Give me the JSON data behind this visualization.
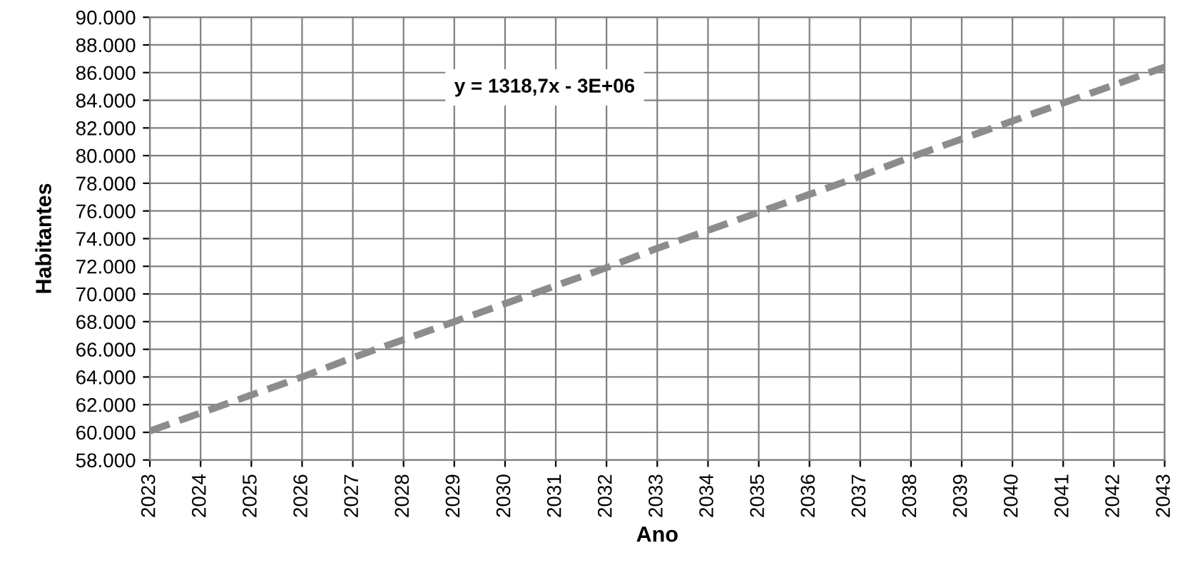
{
  "chart_data": {
    "type": "line",
    "xlabel": "Ano",
    "ylabel": "Habitantes",
    "x": [
      2023,
      2024,
      2025,
      2026,
      2027,
      2028,
      2029,
      2030,
      2031,
      2032,
      2033,
      2034,
      2035,
      2036,
      2037,
      2038,
      2039,
      2040,
      2041,
      2042,
      2043
    ],
    "series": [
      {
        "color": "#8c8c8c",
        "values": [
          60100,
          61400,
          62700,
          64000,
          65400,
          66700,
          68000,
          69300,
          70600,
          71900,
          73300,
          74600,
          75900,
          77200,
          78500,
          79900,
          81200,
          82500,
          83800,
          85100,
          86400
        ]
      }
    ],
    "xlim": [
      2023,
      2043
    ],
    "xticks": [
      2023,
      2024,
      2025,
      2026,
      2027,
      2028,
      2029,
      2030,
      2031,
      2032,
      2033,
      2034,
      2035,
      2036,
      2037,
      2038,
      2039,
      2040,
      2041,
      2042,
      2043
    ],
    "ylim": [
      58000,
      90000
    ],
    "yticks": [
      {
        "value": 58000,
        "label": "58.000"
      },
      {
        "value": 60000,
        "label": "60.000"
      },
      {
        "value": 62000,
        "label": "62.000"
      },
      {
        "value": 64000,
        "label": "64.000"
      },
      {
        "value": 66000,
        "label": "66.000"
      },
      {
        "value": 68000,
        "label": "68.000"
      },
      {
        "value": 70000,
        "label": "70.000"
      },
      {
        "value": 72000,
        "label": "72.000"
      },
      {
        "value": 74000,
        "label": "74.000"
      },
      {
        "value": 76000,
        "label": "76.000"
      },
      {
        "value": 78000,
        "label": "78.000"
      },
      {
        "value": 80000,
        "label": "80.000"
      },
      {
        "value": 82000,
        "label": "82.000"
      },
      {
        "value": 84000,
        "label": "84.000"
      },
      {
        "value": 86000,
        "label": "86.000"
      },
      {
        "value": 88000,
        "label": "88.000"
      },
      {
        "value": 90000,
        "label": "90.000"
      }
    ],
    "annotations": [
      "y = 1318,7x - 3E+06"
    ],
    "grid": true,
    "marker": "none",
    "line_style": "dashed"
  }
}
